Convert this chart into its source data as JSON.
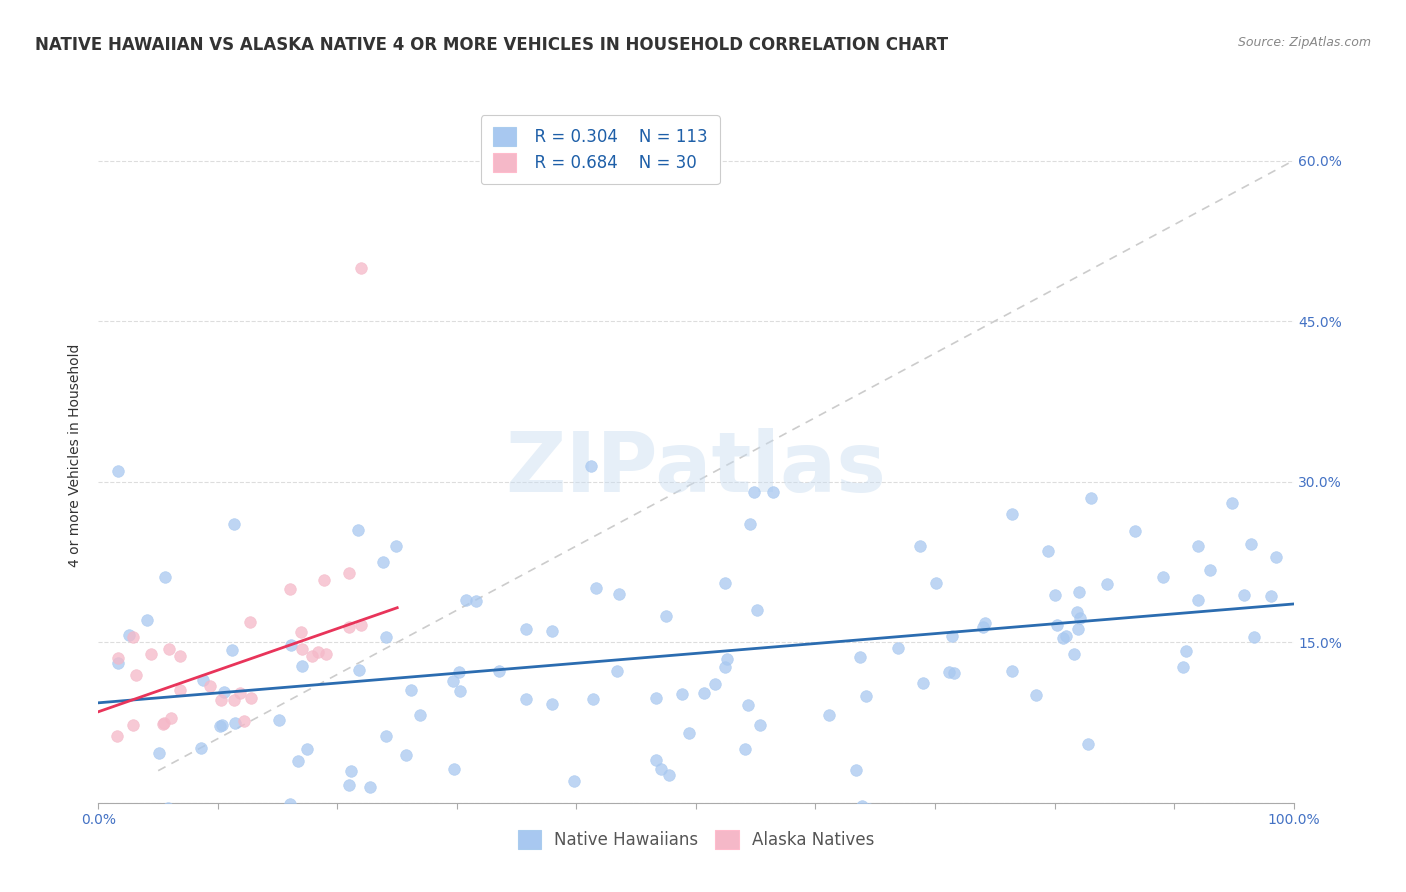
{
  "title": "NATIVE HAWAIIAN VS ALASKA NATIVE 4 OR MORE VEHICLES IN HOUSEHOLD CORRELATION CHART",
  "source": "Source: ZipAtlas.com",
  "ylabel": "4 or more Vehicles in Household",
  "xlim": [
    0,
    100
  ],
  "ylim": [
    0,
    65
  ],
  "blue_color": "#A8C8F0",
  "pink_color": "#F5B8C8",
  "blue_line_color": "#2B6CB0",
  "pink_line_color": "#E8345A",
  "ref_line_color": "#CCCCCC",
  "legend_color1": "#A8C8F0",
  "legend_color2": "#F5B8C8",
  "legend_r1": "R = 0.304",
  "legend_n1": "N = 113",
  "legend_r2": "R = 0.684",
  "legend_n2": "N = 30",
  "right_tick_color": "#4472C4",
  "background_color": "#FFFFFF",
  "watermark": "ZIPatlas",
  "title_fontsize": 12,
  "source_fontsize": 9,
  "axis_label_fontsize": 10,
  "tick_fontsize": 10,
  "legend_fontsize": 12,
  "watermark_fontsize": 60,
  "seed": 99
}
